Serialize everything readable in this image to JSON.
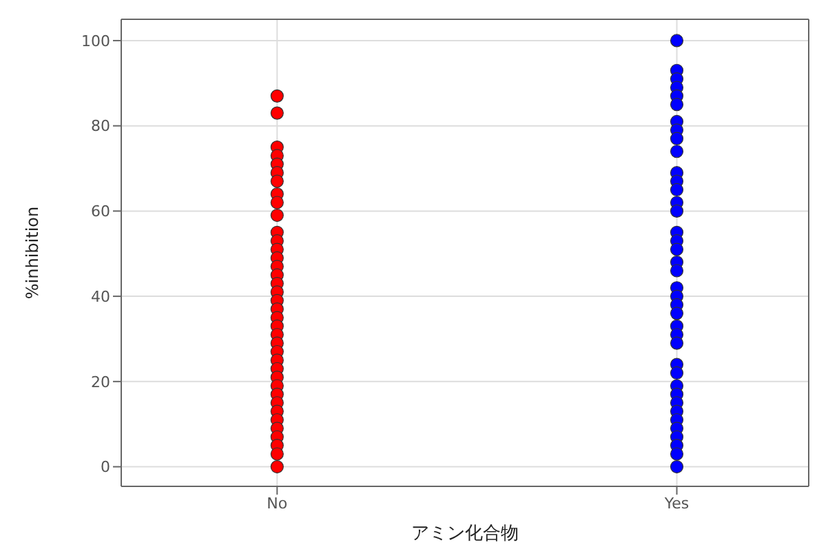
{
  "chart_data": {
    "type": "scatter",
    "xlabel": "アミン化合物",
    "ylabel": "%inhibition",
    "categories": [
      "No",
      "Yes"
    ],
    "ylim": [
      -4.6,
      105
    ],
    "yticks": [
      0,
      20,
      40,
      60,
      80,
      100
    ],
    "grid": true,
    "marker": "circle",
    "series": [
      {
        "color": "#ff0000",
        "x": [
          "No",
          "No",
          "No",
          "No",
          "No",
          "No",
          "No",
          "No",
          "No",
          "No",
          "No",
          "No",
          "No",
          "No",
          "No",
          "No",
          "No",
          "No",
          "No",
          "No",
          "No",
          "No",
          "No",
          "No",
          "No",
          "No",
          "No",
          "No",
          "No",
          "No",
          "No",
          "No",
          "No",
          "No",
          "No",
          "No",
          "No",
          "No"
        ],
        "values": [
          87,
          83,
          75,
          73,
          71,
          69,
          67,
          64,
          62,
          59,
          55,
          53,
          51,
          49,
          47,
          45,
          43,
          41,
          39,
          37,
          35,
          33,
          31,
          29,
          27,
          25,
          23,
          21,
          19,
          17,
          15,
          13,
          11,
          9,
          7,
          5,
          3,
          0
        ]
      },
      {
        "color": "#0000ff",
        "x": [
          "Yes",
          "Yes",
          "Yes",
          "Yes",
          "Yes",
          "Yes",
          "Yes",
          "Yes",
          "Yes",
          "Yes",
          "Yes",
          "Yes",
          "Yes",
          "Yes",
          "Yes",
          "Yes",
          "Yes",
          "Yes",
          "Yes",
          "Yes",
          "Yes",
          "Yes",
          "Yes",
          "Yes",
          "Yes",
          "Yes",
          "Yes",
          "Yes",
          "Yes",
          "Yes",
          "Yes",
          "Yes",
          "Yes",
          "Yes",
          "Yes",
          "Yes",
          "Yes",
          "Yes",
          "Yes"
        ],
        "values": [
          100,
          93,
          91,
          89,
          87,
          85,
          81,
          79,
          77,
          74,
          69,
          67,
          65,
          62,
          60,
          55,
          53,
          51,
          48,
          46,
          42,
          40,
          38,
          36,
          33,
          31,
          29,
          24,
          22,
          19,
          17,
          15,
          13,
          11,
          9,
          7,
          5,
          3,
          0
        ]
      }
    ]
  }
}
